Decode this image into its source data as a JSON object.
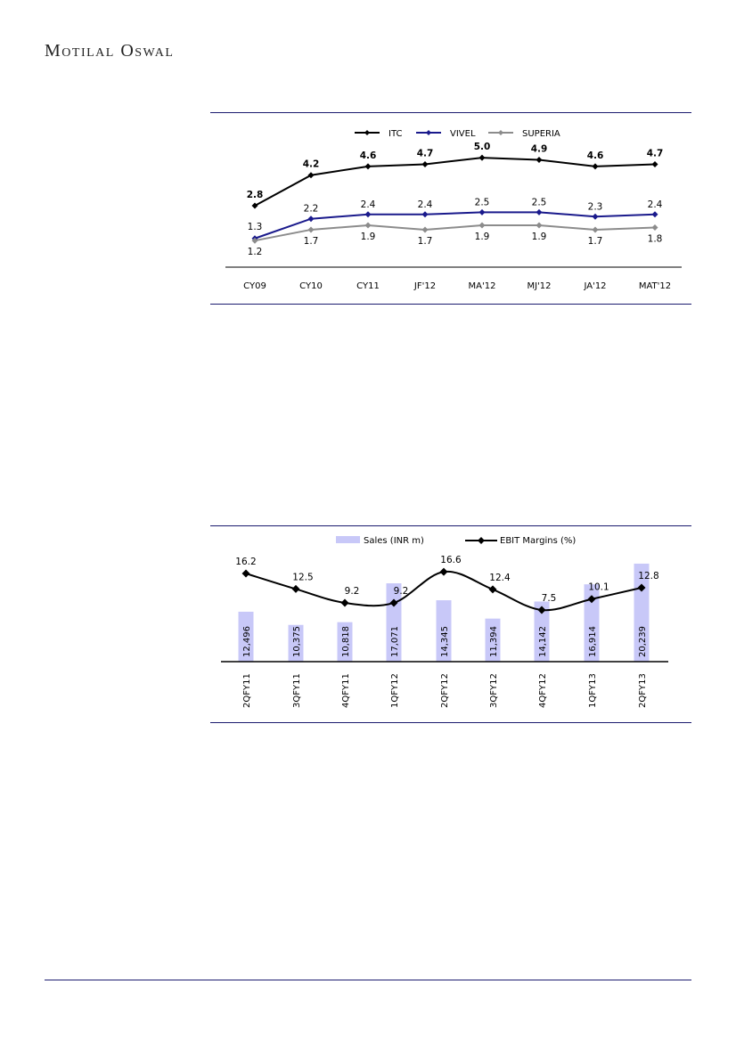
{
  "header": {
    "brand": "Motilal Oswal"
  },
  "chart_data": [
    {
      "type": "line",
      "categories": [
        "CY09",
        "CY10",
        "CY11",
        "JF'12",
        "MA'12",
        "MJ'12",
        "JA'12",
        "MAT'12"
      ],
      "series": [
        {
          "name": "ITC",
          "color": "#000000",
          "values": [
            2.8,
            4.2,
            4.6,
            4.7,
            5.0,
            4.9,
            4.6,
            4.7
          ],
          "labels": [
            "2.8",
            "4.2",
            "4.6",
            "4.7",
            "5.0",
            "4.9",
            "4.6",
            "4.7"
          ]
        },
        {
          "name": "VIVEL",
          "color": "#1a1a8c",
          "values": [
            1.3,
            2.2,
            2.4,
            2.4,
            2.5,
            2.5,
            2.3,
            2.4
          ],
          "labels": [
            "1.3",
            "2.2",
            "2.4",
            "2.4",
            "2.5",
            "2.5",
            "2.3",
            "2.4"
          ]
        },
        {
          "name": "SUPERIA",
          "color": "#8c8c8c",
          "values": [
            1.2,
            1.7,
            1.9,
            1.7,
            1.9,
            1.9,
            1.7,
            1.8
          ],
          "labels": [
            "1.2",
            "1.7",
            "1.9",
            "1.7",
            "1.9",
            "1.9",
            "1.7",
            "1.8"
          ]
        }
      ],
      "legend": "top-center",
      "grid": false
    },
    {
      "type": "bar",
      "categories": [
        "2QFY11",
        "3QFY11",
        "4QFY11",
        "1QFY12",
        "2QFY12",
        "3QFY12",
        "4QFY12",
        "1QFY13",
        "2QFY13"
      ],
      "series": [
        {
          "name": "Sales (INR m)",
          "kind": "bar",
          "color": "#c8c8f8",
          "values": [
            12496,
            10375,
            10818,
            17071,
            14345,
            11394,
            14142,
            16914,
            20239
          ],
          "labels": [
            "12,496",
            "10,375",
            "10,818",
            "17,071",
            "14,345",
            "11,394",
            "14,142",
            "16,914",
            "20,239"
          ]
        },
        {
          "name": "EBIT Margins (%)",
          "kind": "line",
          "color": "#000000",
          "values": [
            16.2,
            12.5,
            9.2,
            9.2,
            16.6,
            12.4,
            7.5,
            10.1,
            12.8
          ],
          "labels": [
            "16.2",
            "12.5",
            "9.2",
            "9.2",
            "16.6",
            "12.4",
            "7.5",
            "10.1",
            "12.8"
          ]
        }
      ],
      "legend": "top-center",
      "grid": false
    }
  ]
}
